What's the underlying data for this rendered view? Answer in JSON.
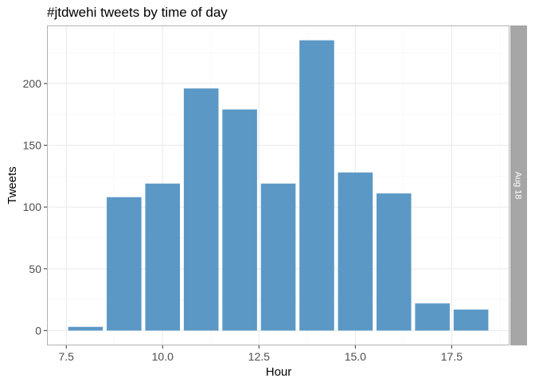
{
  "chart_data": {
    "type": "bar",
    "title": "#jtdwehi tweets by time of day",
    "xlabel": "Hour",
    "ylabel": "Tweets",
    "facet_label": "Aug 18",
    "x": [
      8,
      9,
      10,
      11,
      12,
      13,
      14,
      15,
      16,
      17,
      18
    ],
    "values": [
      3,
      108,
      119,
      196,
      179,
      119,
      235,
      128,
      111,
      22,
      17
    ],
    "xlim": [
      7.0,
      19.0
    ],
    "ylim": [
      -12,
      247
    ],
    "x_ticks": [
      "7.5",
      "10.0",
      "12.5",
      "15.0",
      "17.5"
    ],
    "y_ticks": [
      "0",
      "50",
      "100",
      "150",
      "200"
    ],
    "grid": true,
    "colors": {
      "bar": "#5b98c6",
      "strip": "#a6a6a6",
      "panel_border": "#b3b3b3",
      "grid_major": "#ebebeb",
      "grid_minor": "#f5f5f5"
    }
  }
}
